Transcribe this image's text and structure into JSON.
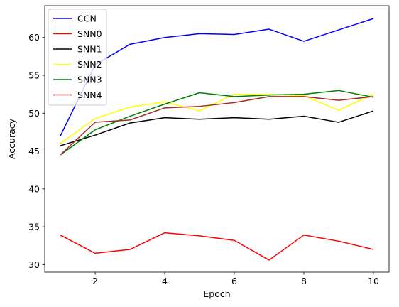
{
  "chart_data": {
    "type": "line",
    "title": "",
    "xlabel": "Epoch",
    "ylabel": "Accuracy",
    "xlim": [
      0.55,
      10.45
    ],
    "ylim": [
      29.0,
      64.2
    ],
    "x_ticks": [
      2,
      4,
      6,
      8,
      10
    ],
    "y_ticks": [
      30,
      35,
      40,
      45,
      50,
      55,
      60
    ],
    "grid": false,
    "legend_position": "top-left",
    "x": [
      1,
      2,
      3,
      4,
      5,
      6,
      7,
      8,
      9,
      10
    ],
    "series": [
      {
        "name": "CCN",
        "color": "#0000ff",
        "values": [
          47.0,
          56.4,
          59.1,
          60.0,
          60.5,
          60.4,
          61.1,
          59.5,
          61.0,
          62.5
        ]
      },
      {
        "name": "SNN0",
        "color": "#ff0000",
        "values": [
          33.9,
          31.5,
          32.0,
          34.2,
          33.8,
          33.2,
          30.6,
          33.9,
          33.1,
          32.0
        ]
      },
      {
        "name": "SNN1",
        "color": "#000000",
        "values": [
          45.7,
          47.1,
          48.7,
          49.4,
          49.2,
          49.4,
          49.2,
          49.6,
          48.8,
          50.3
        ]
      },
      {
        "name": "SNN2",
        "color": "#ffff00",
        "values": [
          46.0,
          49.3,
          50.8,
          51.5,
          50.3,
          52.5,
          52.5,
          52.3,
          50.4,
          52.5
        ]
      },
      {
        "name": "SNN3",
        "color": "#008000",
        "values": [
          44.5,
          47.8,
          49.6,
          51.2,
          52.7,
          52.2,
          52.4,
          52.5,
          53.0,
          52.1
        ]
      },
      {
        "name": "SNN4",
        "color": "#a52a2a",
        "values": [
          44.5,
          48.8,
          49.1,
          50.7,
          50.9,
          51.4,
          52.2,
          52.2,
          51.7,
          52.2
        ]
      }
    ]
  }
}
